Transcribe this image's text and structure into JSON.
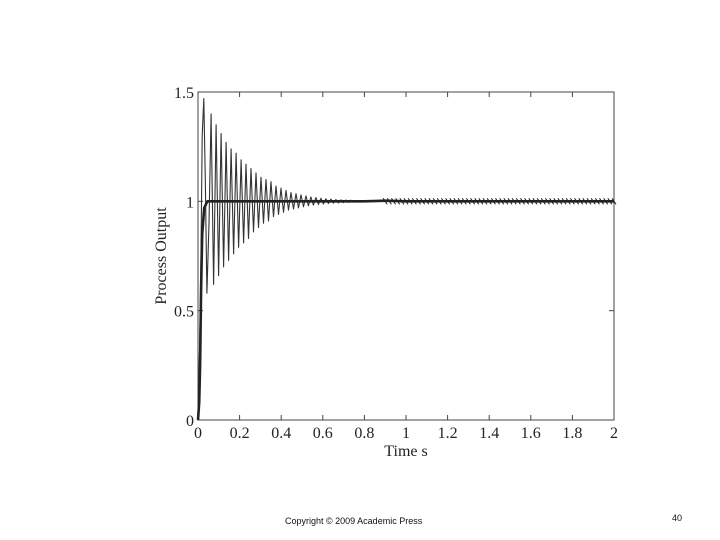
{
  "slide": {
    "copyright": "Copyright © 2009 Academic Press",
    "page_number": "40"
  },
  "chart_data": {
    "type": "line",
    "title": "",
    "xlabel": "Time s",
    "ylabel": "Process Output",
    "xlim": [
      0,
      2
    ],
    "ylim": [
      0,
      1.5
    ],
    "xticks": [
      0,
      0.2,
      0.4,
      0.6,
      0.8,
      1,
      1.2,
      1.4,
      1.6,
      1.8,
      2
    ],
    "xtick_labels": [
      "0",
      "0.2",
      "0.4",
      "0.6",
      "0.8",
      "1",
      "1.2",
      "1.4",
      "1.6",
      "1.8",
      "2"
    ],
    "yticks": [
      0,
      0.5,
      1,
      1.5
    ],
    "ytick_labels": [
      "0",
      "0.5",
      "1",
      "1.5"
    ],
    "grid": false,
    "legend": "none",
    "series": [
      {
        "style": "thin-line",
        "color": "#333333",
        "points": [
          [
            0,
            0
          ],
          [
            0.005,
            0.2
          ],
          [
            0.012,
            0.55
          ],
          [
            0.02,
            1.3
          ],
          [
            0.028,
            1.47
          ],
          [
            0.035,
            1.1
          ],
          [
            0.043,
            0.58
          ],
          [
            0.053,
            0.9
          ],
          [
            0.063,
            1.4
          ],
          [
            0.075,
            0.62
          ],
          [
            0.087,
            1.35
          ],
          [
            0.099,
            0.66
          ],
          [
            0.111,
            1.31
          ],
          [
            0.123,
            0.7
          ],
          [
            0.135,
            1.27
          ],
          [
            0.147,
            0.73
          ],
          [
            0.159,
            1.24
          ],
          [
            0.171,
            0.76
          ],
          [
            0.183,
            1.22
          ],
          [
            0.195,
            0.79
          ],
          [
            0.207,
            1.19
          ],
          [
            0.219,
            0.81
          ],
          [
            0.231,
            1.17
          ],
          [
            0.243,
            0.83
          ],
          [
            0.255,
            1.15
          ],
          [
            0.267,
            0.86
          ],
          [
            0.279,
            1.13
          ],
          [
            0.291,
            0.88
          ],
          [
            0.303,
            1.11
          ],
          [
            0.315,
            0.9
          ],
          [
            0.327,
            1.1
          ],
          [
            0.339,
            0.91
          ],
          [
            0.351,
            1.09
          ],
          [
            0.363,
            0.93
          ],
          [
            0.375,
            1.07
          ],
          [
            0.387,
            0.94
          ],
          [
            0.399,
            1.06
          ],
          [
            0.411,
            0.95
          ],
          [
            0.423,
            1.05
          ],
          [
            0.435,
            0.96
          ],
          [
            0.447,
            1.04
          ],
          [
            0.459,
            0.965
          ],
          [
            0.471,
            1.035
          ],
          [
            0.483,
            0.97
          ],
          [
            0.495,
            1.03
          ],
          [
            0.507,
            0.975
          ],
          [
            0.519,
            1.025
          ],
          [
            0.531,
            0.98
          ],
          [
            0.543,
            1.02
          ],
          [
            0.555,
            0.983
          ],
          [
            0.567,
            1.017
          ],
          [
            0.579,
            0.986
          ],
          [
            0.591,
            1.014
          ],
          [
            0.603,
            0.988
          ],
          [
            0.615,
            1.012
          ],
          [
            0.627,
            0.99
          ],
          [
            0.639,
            1.01
          ],
          [
            0.651,
            0.992
          ],
          [
            0.663,
            1.008
          ],
          [
            0.675,
            0.993
          ],
          [
            0.687,
            1.007
          ],
          [
            0.699,
            0.994
          ],
          [
            0.711,
            1.006
          ],
          [
            0.723,
            0.995
          ],
          [
            0.735,
            1.005
          ],
          [
            0.747,
            0.996
          ],
          [
            0.759,
            1.004
          ],
          [
            0.771,
            0.997
          ],
          [
            0.783,
            1.003
          ],
          [
            0.795,
            0.997
          ],
          [
            0.807,
            1.003
          ],
          [
            0.819,
            0.998
          ],
          [
            0.831,
            1.002
          ],
          [
            0.843,
            0.998
          ],
          [
            0.855,
            1.002
          ],
          [
            0.867,
            0.999
          ],
          [
            0.879,
            1.001
          ],
          [
            0.9,
            1
          ],
          [
            2,
            1
          ]
        ]
      },
      {
        "style": "thick-line-crosses",
        "color": "#222222",
        "points": [
          [
            0,
            0
          ],
          [
            0.006,
            0.08
          ],
          [
            0.01,
            0.25
          ],
          [
            0.015,
            0.6
          ],
          [
            0.02,
            0.85
          ],
          [
            0.03,
            0.97
          ],
          [
            0.045,
            1
          ],
          [
            0.8,
            1
          ],
          [
            0.9,
            1.003
          ],
          [
            1,
            1
          ],
          [
            1.2,
            1
          ],
          [
            1.4,
            1
          ],
          [
            1.6,
            1
          ],
          [
            1.8,
            1
          ],
          [
            2,
            1
          ]
        ]
      }
    ]
  }
}
